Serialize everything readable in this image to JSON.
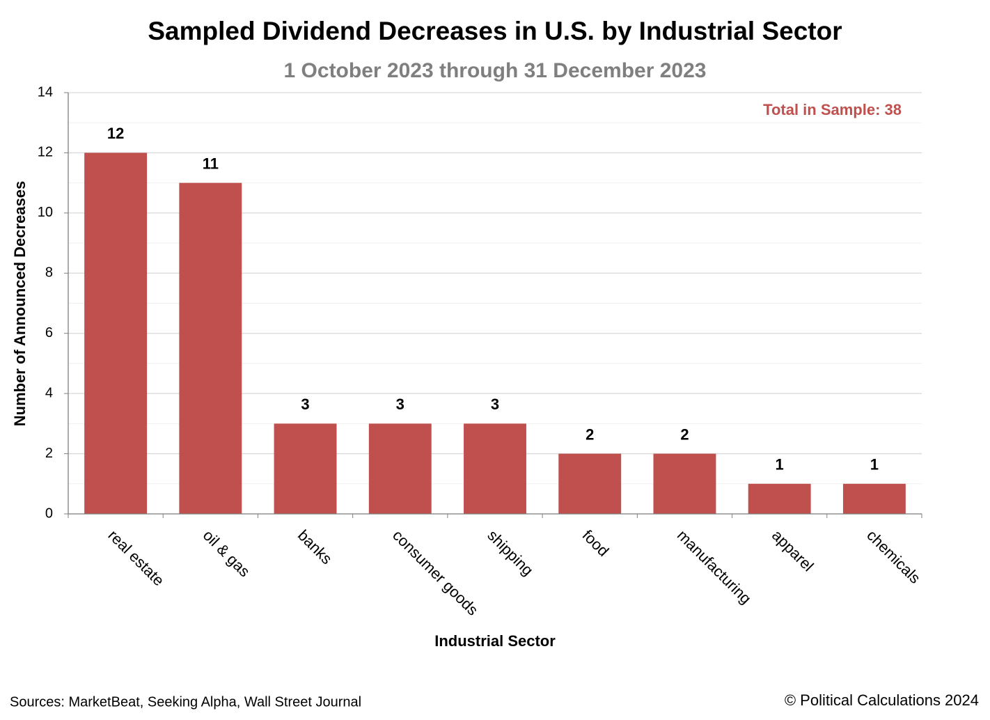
{
  "chart_data": {
    "type": "bar",
    "title": "Sampled Dividend Decreases in U.S. by Industrial Sector",
    "subtitle": "1 October 2023 through 31 December 2023",
    "annotation": "Total in Sample: 38",
    "x_label": "Industrial Sector",
    "y_label": "Number of Announced Decreases",
    "categories": [
      "real estate",
      "oil & gas",
      "banks",
      "consumer goods",
      "shipping",
      "food",
      "manufacturing",
      "apparel",
      "chemicals"
    ],
    "values": [
      12,
      11,
      3,
      3,
      3,
      2,
      2,
      1,
      1
    ],
    "color": "#c0504d",
    "ylim": [
      0,
      14
    ],
    "yticks": [
      0,
      2,
      4,
      6,
      8,
      10,
      12,
      14
    ],
    "minor_yticks": [
      1,
      3,
      5,
      7,
      9,
      11,
      13
    ],
    "grid": true,
    "source": "Sources: MarketBeat, Seeking Alpha, Wall Street Journal",
    "credit": "© Political Calculations 2024"
  }
}
